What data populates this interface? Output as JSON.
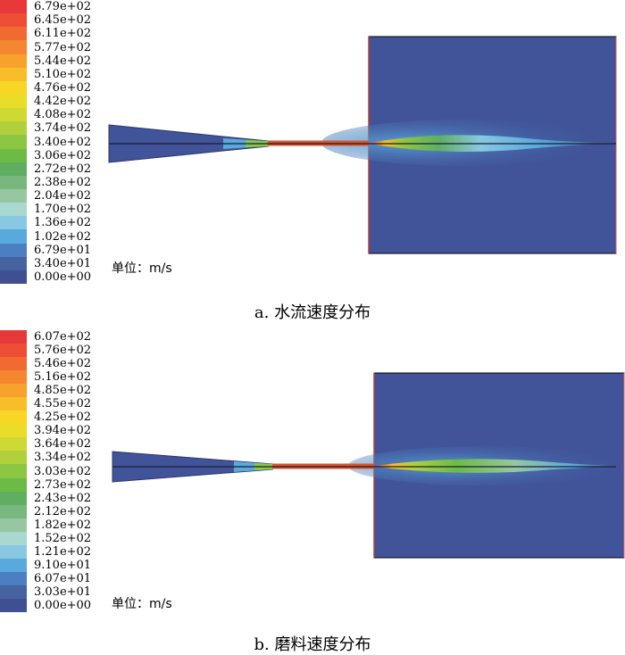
{
  "panels": [
    {
      "caption": "a. 水流速度分布",
      "unit_label": "单位：m/s",
      "legend_labels": [
        "6.79e+02",
        "6.45e+02",
        "6.11e+02",
        "5.77e+02",
        "5.44e+02",
        "5.10e+02",
        "4.76e+02",
        "4.42e+02",
        "4.08e+02",
        "3.74e+02",
        "3.40e+02",
        "3.06e+02",
        "2.72e+02",
        "2.38e+02",
        "2.04e+02",
        "1.70e+02",
        "1.36e+02",
        "1.02e+02",
        "6.79e+01",
        "3.40e+01",
        "0.00e+00"
      ]
    },
    {
      "caption": "b. 磨料速度分布",
      "unit_label": "单位：m/s",
      "legend_labels": [
        "6.07e+02",
        "5.76e+02",
        "5.46e+02",
        "5.16e+02",
        "4.85e+02",
        "4.55e+02",
        "4.25e+02",
        "3.94e+02",
        "3.64e+02",
        "3.34e+02",
        "3.03e+02",
        "2.73e+02",
        "2.43e+02",
        "2.12e+02",
        "1.82e+02",
        "1.52e+02",
        "1.21e+02",
        "9.10e+01",
        "6.07e+01",
        "3.03e+01",
        "0.00e+00"
      ]
    }
  ],
  "colorscale": [
    "#e8393a",
    "#ec4f36",
    "#f16a32",
    "#f4862f",
    "#f6a22b",
    "#f8bd28",
    "#f7d625",
    "#e9dd2a",
    "#cfd934",
    "#b0d13c",
    "#8cc643",
    "#6cbb46",
    "#5fae62",
    "#78b87e",
    "#96c7a0",
    "#a8d8d0",
    "#88c8e2",
    "#5aa9dc",
    "#4a80c2",
    "#46629f",
    "#3f4f92"
  ],
  "field_color": "#41549a"
}
